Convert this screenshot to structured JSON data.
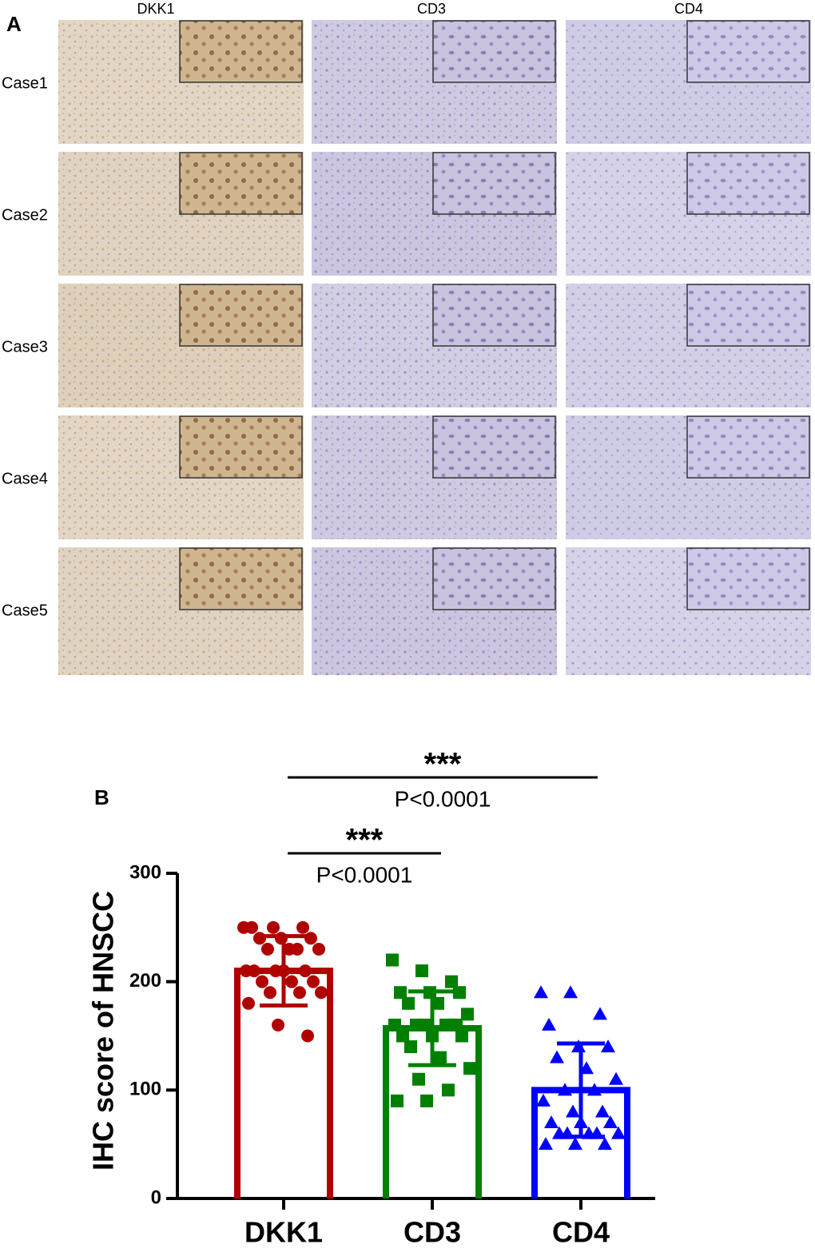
{
  "panel_a": {
    "label": "A",
    "columns": [
      "DKK1",
      "CD3",
      "CD4"
    ],
    "rows": [
      "Case1",
      "Case2",
      "Case3",
      "Case4",
      "Case5"
    ]
  },
  "chart_data": {
    "type": "bar-scatter",
    "label": "B",
    "ylabel": "IHC score of  HNSCC",
    "categories": [
      "DKK1",
      "CD3",
      "CD4"
    ],
    "colors": [
      "#b00000",
      "#008000",
      "#0000ff"
    ],
    "markers": [
      "circle",
      "square",
      "triangle"
    ],
    "means": [
      210,
      157,
      100
    ],
    "sds": [
      32,
      34,
      43
    ],
    "points": [
      [
        250,
        250,
        250,
        250,
        240,
        240,
        240,
        230,
        230,
        230,
        230,
        210,
        210,
        210,
        210,
        210,
        200,
        200,
        200,
        190,
        190,
        190,
        180,
        160,
        150
      ],
      [
        220,
        210,
        200,
        190,
        190,
        190,
        180,
        180,
        170,
        160,
        160,
        160,
        160,
        160,
        150,
        150,
        150,
        140,
        130,
        120,
        110,
        100,
        90,
        90,
        160
      ],
      [
        190,
        190,
        170,
        160,
        140,
        140,
        130,
        120,
        110,
        100,
        100,
        90,
        80,
        80,
        70,
        70,
        70,
        60,
        60,
        60,
        60,
        60,
        50,
        50,
        50
      ]
    ],
    "ylim": [
      0,
      300
    ],
    "yticks": [
      0,
      100,
      200,
      300
    ],
    "annotations": [
      {
        "stars": "***",
        "text": "P<0.0001"
      },
      {
        "stars": "***",
        "text": "P<0.0001"
      }
    ]
  }
}
